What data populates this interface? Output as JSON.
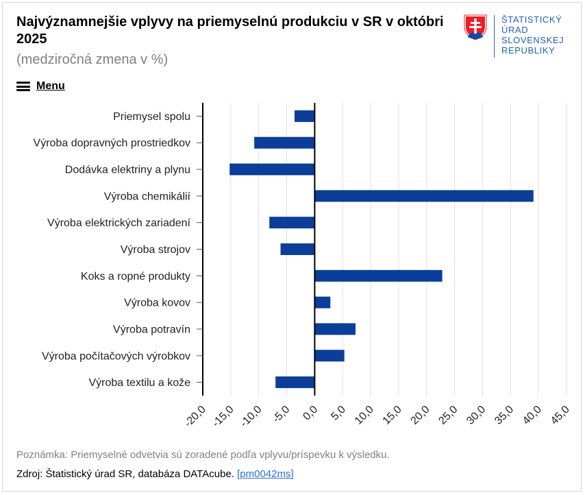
{
  "header": {
    "title": "Najvýznamnejšie vplyvy na priemyselnú produkciu v SR v októbri 2025",
    "subtitle": "(medziročná zmena v %)"
  },
  "menu": {
    "label": "Menu"
  },
  "logo": {
    "lines": [
      "ŠTATISTICKÝ",
      "ÚRAD",
      "SLOVENSKEJ",
      "REPUBLIKY"
    ],
    "colors": {
      "text": "#1f5fb7",
      "shield_red": "#ee1c25",
      "shield_blue": "#0b4ea2"
    }
  },
  "chart_data": {
    "type": "bar",
    "orientation": "horizontal",
    "categories": [
      "Priemysel spolu",
      "Výroba dopravných prostriedkov",
      "Dodávka elektriny a plynu",
      "Výroba chemikálií",
      "Výroba elektrických zariadení",
      "Výroba strojov",
      "Koks a ropné produkty",
      "Výroba kovov",
      "Výroba potravín",
      "Výroba počítačových výrobkov",
      "Výroba textilu a kože"
    ],
    "values": [
      -3.6,
      -10.8,
      -15.2,
      39.1,
      -8.1,
      -6.1,
      22.8,
      2.8,
      7.3,
      5.3,
      -7.0
    ],
    "xlim": [
      -20,
      45
    ],
    "xticks": [
      -20,
      -15,
      -10,
      -5,
      0,
      5,
      10,
      15,
      20,
      25,
      30,
      35,
      40,
      45
    ],
    "xtick_labels": [
      "-20,0",
      "-15,0",
      "-10,0",
      "-5,0",
      "0,0",
      "5,0",
      "10,0",
      "15,0",
      "20,0",
      "25,0",
      "30,0",
      "35,0",
      "40,0",
      "45,0"
    ],
    "grid": true,
    "bar_color": "#0b3e99",
    "grid_color": "#dedede",
    "axis_color": "#000000"
  },
  "footer": {
    "note": "Poznámka: Priemyselné odvetvia sú zoradené podľa vplyvu/príspevku k výsledku.",
    "source_prefix": "Zdroj: Štatistický úrad SR, databáza DATAcube. ",
    "source_link": "[pm0042ms]"
  }
}
